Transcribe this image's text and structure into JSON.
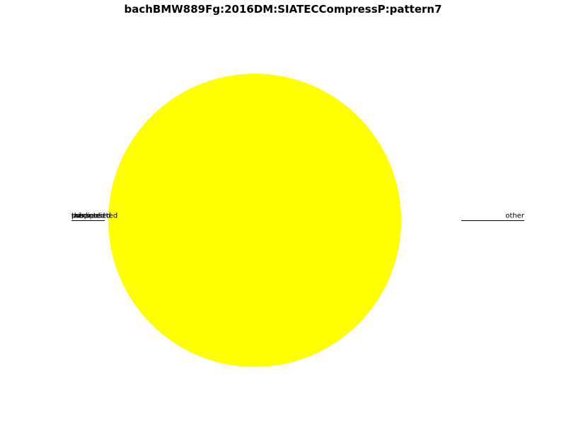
{
  "chart_data": {
    "type": "pie",
    "title": "bachBMW889Fg:2016DM:SIATECCompressP:pattern7",
    "slices": [
      {
        "label": "other",
        "value": 1.0,
        "color": "#ffff00"
      },
      {
        "label": "tlr",
        "value": 0.0
      },
      {
        "label": "mispredicted",
        "value": 0.0
      },
      {
        "label": "transposed",
        "value": 0.0
      },
      {
        "label": "predicted",
        "value": 0.0
      },
      {
        "label": "sub",
        "value": 0.0
      }
    ],
    "legend": "none"
  }
}
